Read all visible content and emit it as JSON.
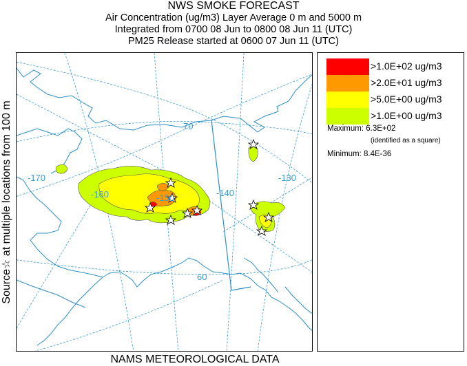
{
  "header": {
    "title": "NWS SMOKE FORECAST",
    "line2": "Air Concentration (ug/m3) Layer Average    0 m and  5000 m",
    "line3": "Integrated from 0700 08 Jun to 0800 08 Jun 11 (UTC)",
    "line4": "PM25 Release started at 0600 07 Jun 11 (UTC)"
  },
  "side_label": "Source☆ at multiple locations  from  100 m",
  "bottom_label": "NAMS METEOROLOGICAL DATA",
  "map": {
    "latitude_labels": [
      "70",
      "60"
    ],
    "longitude_labels": [
      "-170",
      "-160",
      "-150",
      "-140",
      "-130"
    ],
    "colors": {
      "coast": "#2c8fc6",
      "graticule": "#3a9bd0",
      "contour_line": "#555555"
    }
  },
  "legend": {
    "items": [
      {
        "label": ">1.0E+02 ug/m3",
        "color": "#ff0000"
      },
      {
        "label": ">2.0E+01 ug/m3",
        "color": "#ff9900"
      },
      {
        "label": ">5.0E+00 ug/m3",
        "color": "#ffff00"
      },
      {
        "label": ">1.0E+00 ug/m3",
        "color": "#ccff00"
      }
    ],
    "maximum_label": "Maximum: 6.3E+02",
    "maximum_note": "(identified as a square)",
    "minimum_label": "Minimum: 8.4E-36"
  }
}
